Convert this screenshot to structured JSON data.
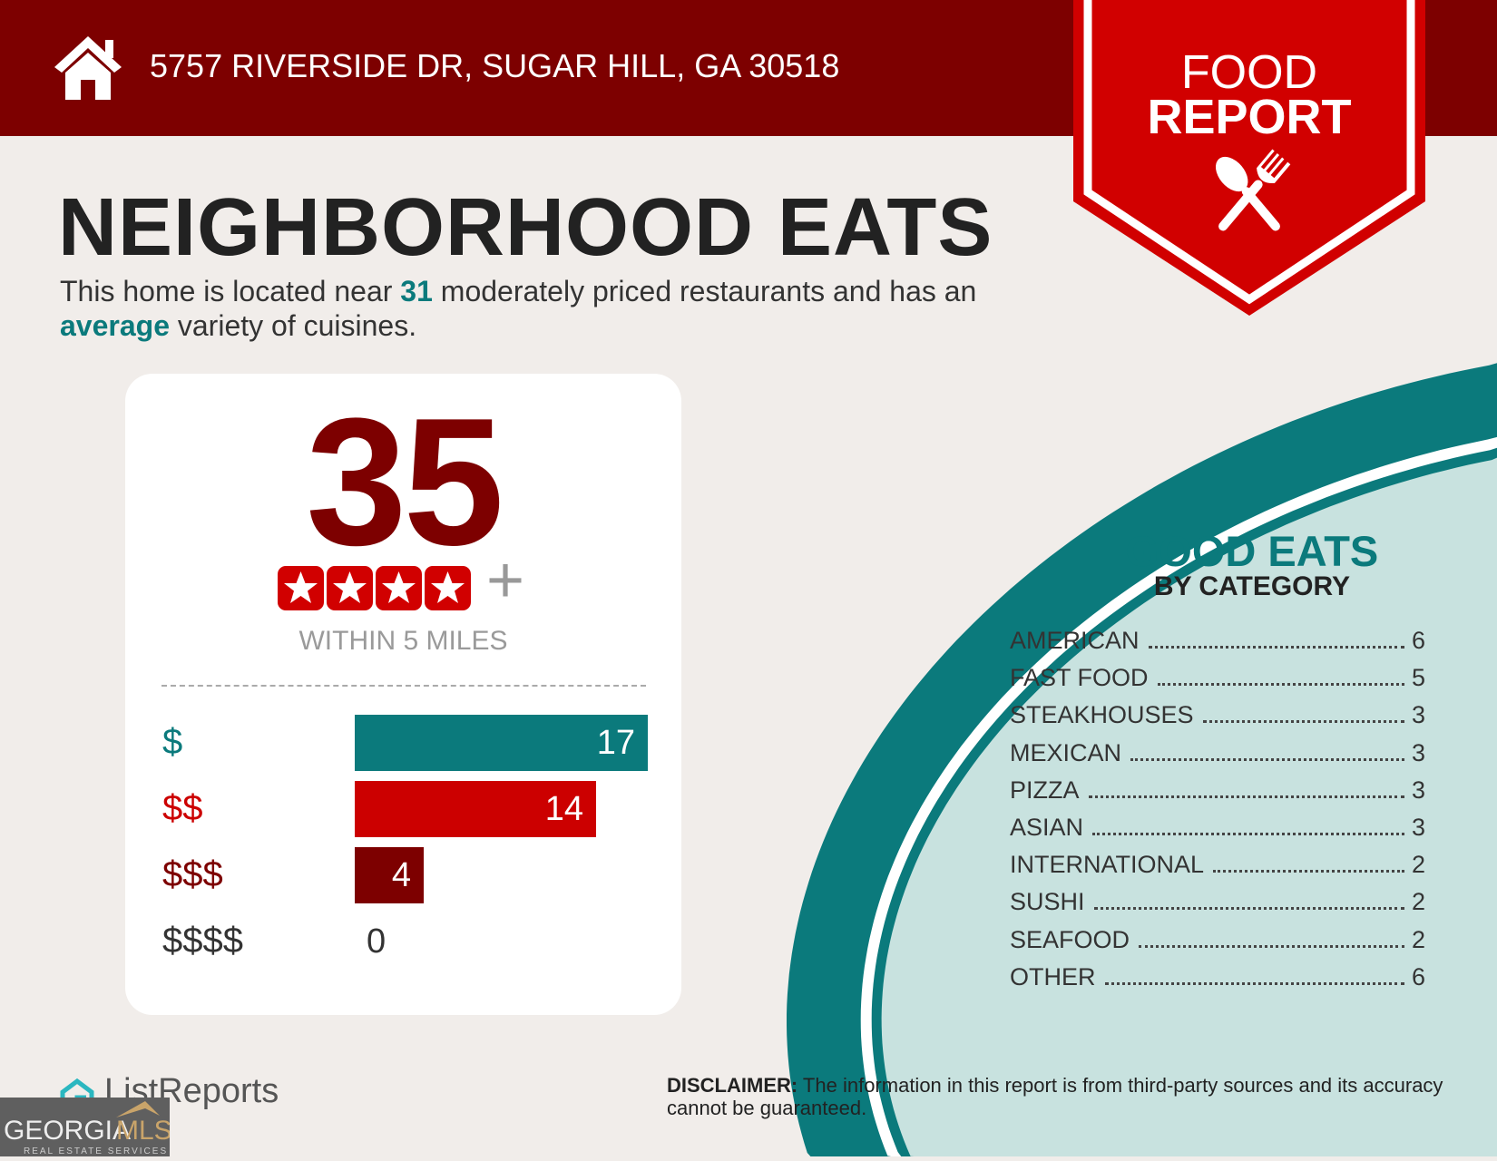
{
  "header": {
    "address": "5757 RIVERSIDE DR, SUGAR HILL, GA 30518",
    "icon": "home-icon"
  },
  "badge": {
    "line1": "FOOD",
    "line2": "REPORT",
    "icon": "utensils-icon"
  },
  "title": "NEIGHBORHOOD EATS",
  "subtitle": {
    "part1": "This home is located near ",
    "count": "31",
    "part2": " moderately priced restaurants and has an ",
    "variety": "average",
    "part3": " variety of cuisines."
  },
  "card": {
    "total": "35",
    "stars": 4,
    "plus": "+",
    "within": "WITHIN 5 MILES",
    "price_rows": [
      {
        "label": "$",
        "value": 17,
        "value_text": "17",
        "color": "#0b7a7c"
      },
      {
        "label": "$$",
        "value": 14,
        "value_text": "14",
        "color": "#cc0000"
      },
      {
        "label": "$$$",
        "value": 4,
        "value_text": "4",
        "color": "#7d0000"
      },
      {
        "label": "$$$$",
        "value": 0,
        "value_text": "0",
        "color": "#333333"
      }
    ]
  },
  "categories": {
    "title": "GOOD EATS",
    "subtitle": "BY CATEGORY",
    "items": [
      {
        "name": "AMERICAN",
        "count": "6"
      },
      {
        "name": "FAST FOOD",
        "count": "5"
      },
      {
        "name": "STEAKHOUSES",
        "count": "3"
      },
      {
        "name": "MEXICAN",
        "count": "3"
      },
      {
        "name": "PIZZA",
        "count": "3"
      },
      {
        "name": "ASIAN",
        "count": "3"
      },
      {
        "name": "INTERNATIONAL",
        "count": "2"
      },
      {
        "name": "SUSHI",
        "count": "2"
      },
      {
        "name": "SEAFOOD",
        "count": "2"
      },
      {
        "name": "OTHER",
        "count": "6"
      }
    ]
  },
  "disclaimer": {
    "label": "DISCLAIMER:",
    "text": " The information in this report is from third-party sources and its accuracy cannot be guaranteed."
  },
  "footer": {
    "brand": "ListReports",
    "mls_logo": "GEORGIAMLS REAL ESTATE SERVICES"
  },
  "colors": {
    "header": "#7d0000",
    "badge": "#d10000",
    "teal": "#0b7a7c",
    "light_teal": "#c8e2df",
    "background": "#f1edea"
  }
}
